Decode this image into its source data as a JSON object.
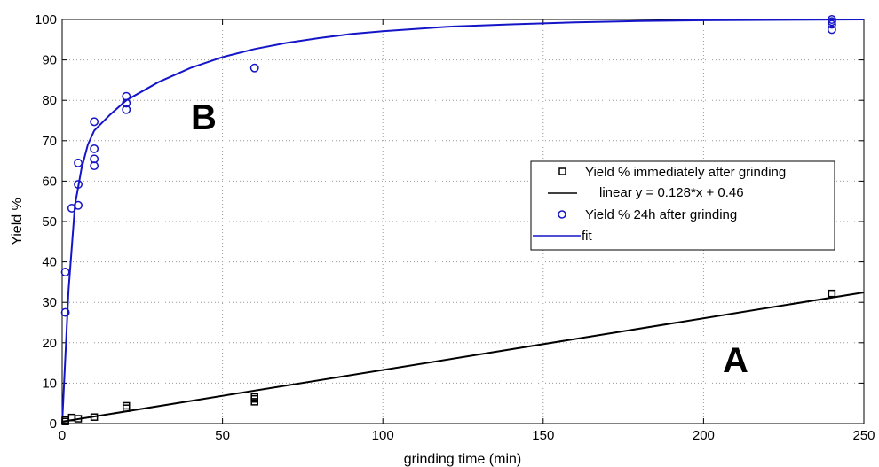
{
  "chart_data": {
    "type": "scatter",
    "xlabel": "grinding time (min)",
    "ylabel": "Yield %",
    "xlim": [
      0,
      250
    ],
    "ylim": [
      0,
      100
    ],
    "xticks": [
      "0",
      "50",
      "100",
      "150",
      "200",
      "250"
    ],
    "yticks": [
      "0",
      "10",
      "20",
      "30",
      "40",
      "50",
      "60",
      "70",
      "80",
      "90",
      "100"
    ],
    "grid": true,
    "legend_position": "center-right",
    "annotations": [
      "B",
      "A"
    ],
    "series": [
      {
        "name": "Yield % immediately after grinding",
        "kind": "markers",
        "marker": "square",
        "color": "#000000",
        "points": [
          [
            1,
            0.5
          ],
          [
            1,
            0.9
          ],
          [
            3,
            1.5
          ],
          [
            5,
            1.2
          ],
          [
            10,
            1.6
          ],
          [
            20,
            3.8
          ],
          [
            20,
            4.4
          ],
          [
            60,
            5.4
          ],
          [
            60,
            6.1
          ],
          [
            60,
            6.6
          ],
          [
            240,
            32.2
          ]
        ]
      },
      {
        "name": "linear",
        "label_text": "linear  y = 0.128*x + 0.46",
        "kind": "line",
        "color": "#000000",
        "slope": 0.128,
        "intercept": 0.46
      },
      {
        "name": "Yield % 24h after grinding",
        "kind": "markers",
        "marker": "circle",
        "color": "#1515c8",
        "points": [
          [
            1,
            37.5
          ],
          [
            1,
            27.5
          ],
          [
            3,
            53.3
          ],
          [
            5,
            64.5
          ],
          [
            5,
            59.2
          ],
          [
            5,
            54
          ],
          [
            10,
            74.7
          ],
          [
            10,
            68
          ],
          [
            10,
            65.5
          ],
          [
            10,
            63.8
          ],
          [
            20,
            81
          ],
          [
            20,
            79.3
          ],
          [
            20,
            77.7
          ],
          [
            60,
            88
          ],
          [
            240,
            100
          ],
          [
            240,
            99.5
          ],
          [
            240,
            98.8
          ],
          [
            240,
            97.5
          ]
        ]
      },
      {
        "name": "fit",
        "kind": "line",
        "color": "#1515c8",
        "points": [
          [
            0,
            0
          ],
          [
            2,
            33
          ],
          [
            4,
            54
          ],
          [
            6,
            63
          ],
          [
            8,
            69
          ],
          [
            10,
            72.5
          ],
          [
            15,
            76.5
          ],
          [
            20,
            80
          ],
          [
            30,
            84.5
          ],
          [
            40,
            88
          ],
          [
            50,
            90.7
          ],
          [
            60,
            92.7
          ],
          [
            70,
            94.2
          ],
          [
            80,
            95.4
          ],
          [
            90,
            96.4
          ],
          [
            100,
            97.1
          ],
          [
            120,
            98.2
          ],
          [
            140,
            98.8
          ],
          [
            160,
            99.3
          ],
          [
            180,
            99.6
          ],
          [
            200,
            99.8
          ],
          [
            220,
            99.9
          ],
          [
            250,
            100
          ]
        ]
      }
    ]
  },
  "colors": {
    "blue": "#1515c8",
    "black": "#000000",
    "grid": "#9a9a9a"
  }
}
